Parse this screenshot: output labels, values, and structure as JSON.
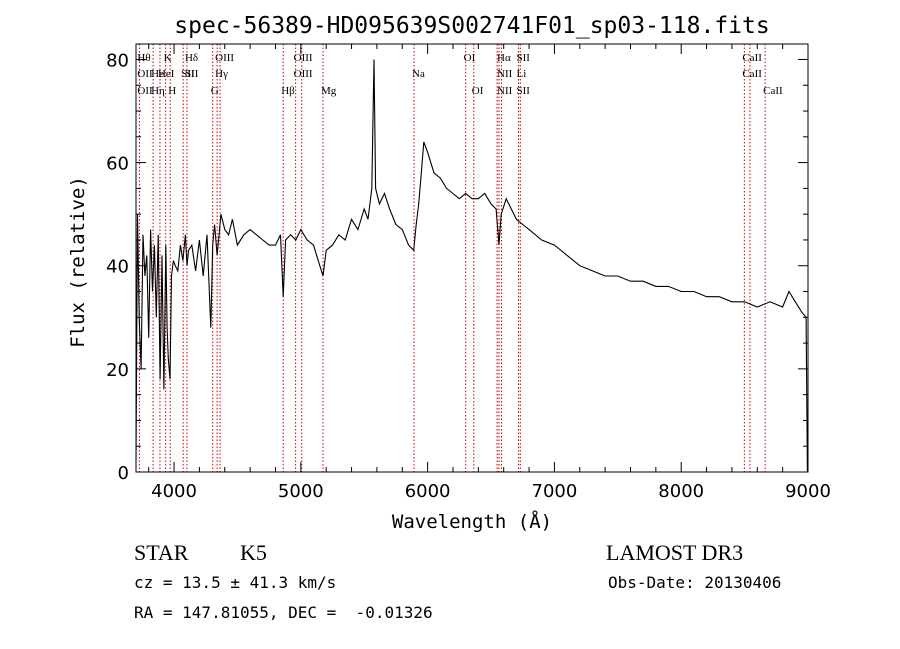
{
  "chart_data": {
    "type": "line",
    "title": "spec-56389-HD095639S002741F01_sp03-118.fits",
    "xlabel": "Wavelength (Å)",
    "ylabel": "Flux (relative)",
    "xlim": [
      3700,
      9000
    ],
    "ylim": [
      0,
      83
    ],
    "x_ticks": [
      4000,
      5000,
      6000,
      7000,
      8000,
      9000
    ],
    "y_ticks": [
      0,
      20,
      40,
      60,
      80
    ],
    "grid": false,
    "series": [
      {
        "x": [
          3700,
          3712,
          3725,
          3740,
          3755,
          3770,
          3785,
          3800,
          3815,
          3830,
          3845,
          3860,
          3875,
          3890,
          3905,
          3920,
          3935,
          3945,
          3955,
          3968,
          3980,
          3995,
          4010,
          4030,
          4050,
          4070,
          4090,
          4102,
          4115,
          4140,
          4170,
          4200,
          4230,
          4260,
          4290,
          4305,
          4320,
          4340,
          4370,
          4400,
          4430,
          4460,
          4500,
          4550,
          4600,
          4650,
          4700,
          4750,
          4800,
          4840,
          4861,
          4880,
          4920,
          4960,
          5000,
          5050,
          5100,
          5150,
          5175,
          5200,
          5250,
          5300,
          5350,
          5400,
          5450,
          5500,
          5530,
          5560,
          5577,
          5590,
          5620,
          5660,
          5700,
          5750,
          5800,
          5850,
          5890,
          5910,
          5930,
          5950,
          5970,
          6000,
          6050,
          6100,
          6150,
          6200,
          6250,
          6300,
          6350,
          6400,
          6450,
          6500,
          6540,
          6563,
          6580,
          6620,
          6660,
          6700,
          6750,
          6800,
          6900,
          7000,
          7100,
          7200,
          7300,
          7400,
          7500,
          7600,
          7700,
          7800,
          7900,
          8000,
          8100,
          8200,
          8300,
          8400,
          8500,
          8600,
          8700,
          8800,
          8850,
          8900,
          8950,
          8985,
          8995
        ],
        "y": [
          2,
          50,
          30,
          20,
          46,
          38,
          42,
          26,
          47,
          35,
          44,
          30,
          46,
          18,
          42,
          16,
          44,
          28,
          22,
          18,
          38,
          41,
          40,
          39,
          44,
          41,
          46,
          40,
          43,
          44,
          39,
          45,
          38,
          46,
          28,
          44,
          48,
          42,
          50,
          47,
          46,
          49,
          44,
          46,
          47,
          46,
          45,
          44,
          44,
          46,
          34,
          45,
          46,
          45,
          47,
          45,
          44,
          40,
          38,
          43,
          44,
          46,
          45,
          49,
          47,
          51,
          49,
          55,
          80,
          55,
          52,
          54,
          51,
          48,
          47,
          44,
          43,
          48,
          52,
          58,
          64,
          62,
          58,
          57,
          55,
          54,
          53,
          54,
          53,
          53,
          54,
          52,
          51,
          44,
          50,
          53,
          51,
          49,
          48,
          47,
          45,
          44,
          42,
          40,
          39,
          38,
          38,
          37,
          37,
          36,
          36,
          35,
          35,
          34,
          34,
          33,
          33,
          32,
          33,
          32,
          35,
          33,
          31,
          30,
          0
        ]
      }
    ],
    "line_markers": [
      {
        "labels": [
          "Hθ",
          "OII",
          "OII"
        ],
        "x": 3727
      },
      {
        "labels": [
          "",
          "He",
          "Hη"
        ],
        "x": 3835
      },
      {
        "labels": [
          "K",
          "",
          ""
        ],
        "x": 3934
      },
      {
        "labels": [
          "",
          "HeI",
          ""
        ],
        "x": 3889
      },
      {
        "labels": [
          "",
          "",
          "H"
        ],
        "x": 3970
      },
      {
        "labels": [
          "Hδ",
          "SII",
          ""
        ],
        "x": 4102
      },
      {
        "labels": [
          "",
          "SII",
          ""
        ],
        "x": 4072
      },
      {
        "labels": [
          "",
          "",
          "G"
        ],
        "x": 4305
      },
      {
        "labels": [
          "OIII",
          "Hγ",
          ""
        ],
        "x": 4340
      },
      {
        "labels": [
          "",
          "",
          ""
        ],
        "x": 4363
      },
      {
        "labels": [
          "",
          "",
          "Hβ"
        ],
        "x": 4861
      },
      {
        "labels": [
          "OIII",
          "OIII",
          ""
        ],
        "x": 4959
      },
      {
        "labels": [
          "",
          "",
          ""
        ],
        "x": 5007
      },
      {
        "labels": [
          "",
          "",
          "Mg"
        ],
        "x": 5175
      },
      {
        "labels": [
          "",
          "Na",
          ""
        ],
        "x": 5893
      },
      {
        "labels": [
          "OI",
          "",
          ""
        ],
        "x": 6300
      },
      {
        "labels": [
          "",
          "",
          "OI"
        ],
        "x": 6364
      },
      {
        "labels": [
          "Hα",
          "NII",
          "NII"
        ],
        "x": 6563
      },
      {
        "labels": [
          "",
          "",
          ""
        ],
        "x": 6548
      },
      {
        "labels": [
          "",
          "",
          ""
        ],
        "x": 6583
      },
      {
        "labels": [
          "SII",
          "Li",
          "SII"
        ],
        "x": 6717
      },
      {
        "labels": [
          "",
          "",
          ""
        ],
        "x": 6731
      },
      {
        "labels": [
          "CaII",
          "CaII",
          ""
        ],
        "x": 8498
      },
      {
        "labels": [
          "",
          "",
          ""
        ],
        "x": 8542
      },
      {
        "labels": [
          "",
          "",
          "CaII"
        ],
        "x": 8662
      }
    ]
  },
  "info": {
    "object_class": "STAR",
    "subclass": "K5",
    "survey": "LAMOST DR3",
    "redshift": "cz = 13.5 ± 41.3 km/s",
    "obs_date": "Obs-Date: 20130406",
    "coords": "RA = 147.81055, DEC =  -0.01326"
  },
  "colors": {
    "spectrum": "#000000",
    "marker_lines": "#cc0000",
    "axes": "#000000"
  }
}
